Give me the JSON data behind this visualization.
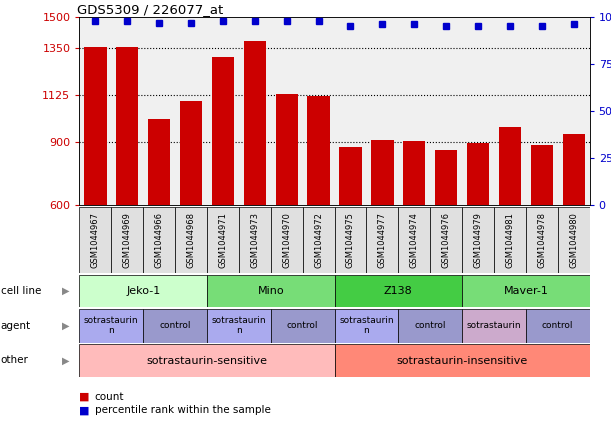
{
  "title": "GDS5309 / 226077_at",
  "samples": [
    "GSM1044967",
    "GSM1044969",
    "GSM1044966",
    "GSM1044968",
    "GSM1044971",
    "GSM1044973",
    "GSM1044970",
    "GSM1044972",
    "GSM1044975",
    "GSM1044977",
    "GSM1044974",
    "GSM1044976",
    "GSM1044979",
    "GSM1044981",
    "GSM1044978",
    "GSM1044980"
  ],
  "counts": [
    1355,
    1355,
    1010,
    1100,
    1310,
    1385,
    1130,
    1120,
    880,
    910,
    905,
    865,
    895,
    975,
    890,
    940
  ],
  "percentiles": [
    98,
    98,
    97,
    97,
    98,
    98,
    98,
    98,
    95,
    96,
    96,
    95,
    95,
    95,
    95,
    96
  ],
  "bar_color": "#CC0000",
  "dot_color": "#0000CC",
  "ylim_left": [
    600,
    1500
  ],
  "ylim_right": [
    0,
    100
  ],
  "yticks_left": [
    600,
    900,
    1125,
    1350,
    1500
  ],
  "yticks_right": [
    0,
    25,
    50,
    75,
    100
  ],
  "grid_values": [
    900,
    1125,
    1350
  ],
  "cell_lines": [
    {
      "label": "Jeko-1",
      "start": 0,
      "end": 4,
      "color": "#CCFFCC"
    },
    {
      "label": "Mino",
      "start": 4,
      "end": 8,
      "color": "#77DD77"
    },
    {
      "label": "Z138",
      "start": 8,
      "end": 12,
      "color": "#44CC44"
    },
    {
      "label": "Maver-1",
      "start": 12,
      "end": 16,
      "color": "#77DD77"
    }
  ],
  "agents": [
    {
      "label": "sotrastaurin\nn",
      "start": 0,
      "end": 2,
      "color": "#AAAAEE"
    },
    {
      "label": "control",
      "start": 2,
      "end": 4,
      "color": "#9999CC"
    },
    {
      "label": "sotrastaurin\nn",
      "start": 4,
      "end": 6,
      "color": "#AAAAEE"
    },
    {
      "label": "control",
      "start": 6,
      "end": 8,
      "color": "#9999CC"
    },
    {
      "label": "sotrastaurin\nn",
      "start": 8,
      "end": 10,
      "color": "#AAAAEE"
    },
    {
      "label": "control",
      "start": 10,
      "end": 12,
      "color": "#9999CC"
    },
    {
      "label": "sotrastaurin",
      "start": 12,
      "end": 14,
      "color": "#CCAACC"
    },
    {
      "label": "control",
      "start": 14,
      "end": 16,
      "color": "#9999CC"
    }
  ],
  "others": [
    {
      "label": "sotrastaurin-sensitive",
      "start": 0,
      "end": 8,
      "color": "#FFBBBB"
    },
    {
      "label": "sotrastaurin-insensitive",
      "start": 8,
      "end": 16,
      "color": "#FF8877"
    }
  ],
  "bg_color": "#E0E0E0",
  "plot_bg": "#F0F0F0"
}
